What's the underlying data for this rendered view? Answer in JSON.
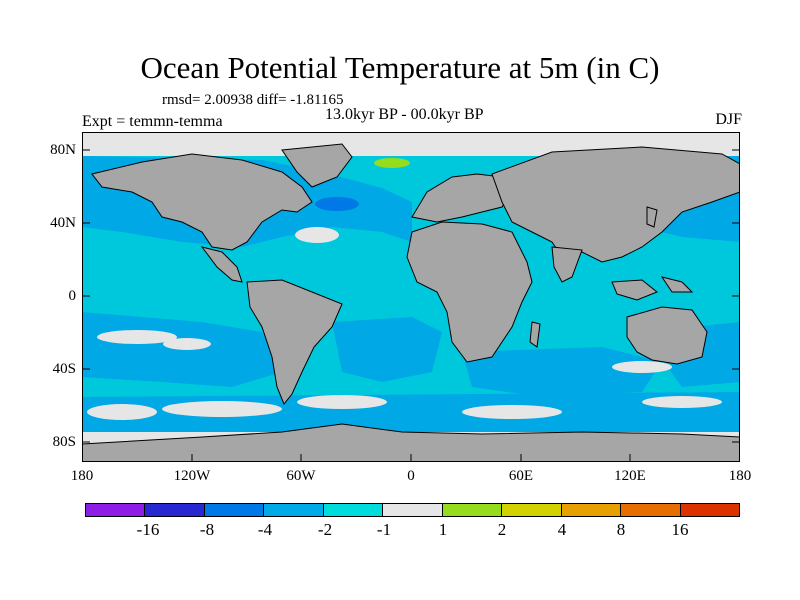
{
  "title": "Ocean Potential Temperature at 5m (in C)",
  "stats": "rmsd= 2.00938 diff= -1.81165",
  "subtitle": "13.0kyr BP - 00.0kyr BP",
  "expt": "Expt = temmn-temma",
  "season": "DJF",
  "map": {
    "lat_range": [
      -90,
      90
    ],
    "lon_range": [
      -180,
      180
    ],
    "lat_ticks": [
      "80N",
      "40N",
      "0",
      "40S",
      "80S"
    ],
    "lon_ticks": [
      "180",
      "120W",
      "60W",
      "0",
      "60E",
      "120E",
      "180"
    ],
    "land_color": "#a6a6a6",
    "ocean_dominant_color": "#00c8dc",
    "ocean_cool_color": "#00a8e6"
  },
  "colorbar": {
    "colors": [
      "#8c1ee6",
      "#2828d2",
      "#0078e6",
      "#00aae6",
      "#00dcdc",
      "#e6e6e6",
      "#96dc1e",
      "#d2d200",
      "#e6a000",
      "#e66e00",
      "#dc3200"
    ],
    "labels": [
      "-16",
      "-8",
      "-4",
      "-2",
      "-1",
      "1",
      "2",
      "4",
      "8",
      "16"
    ]
  }
}
